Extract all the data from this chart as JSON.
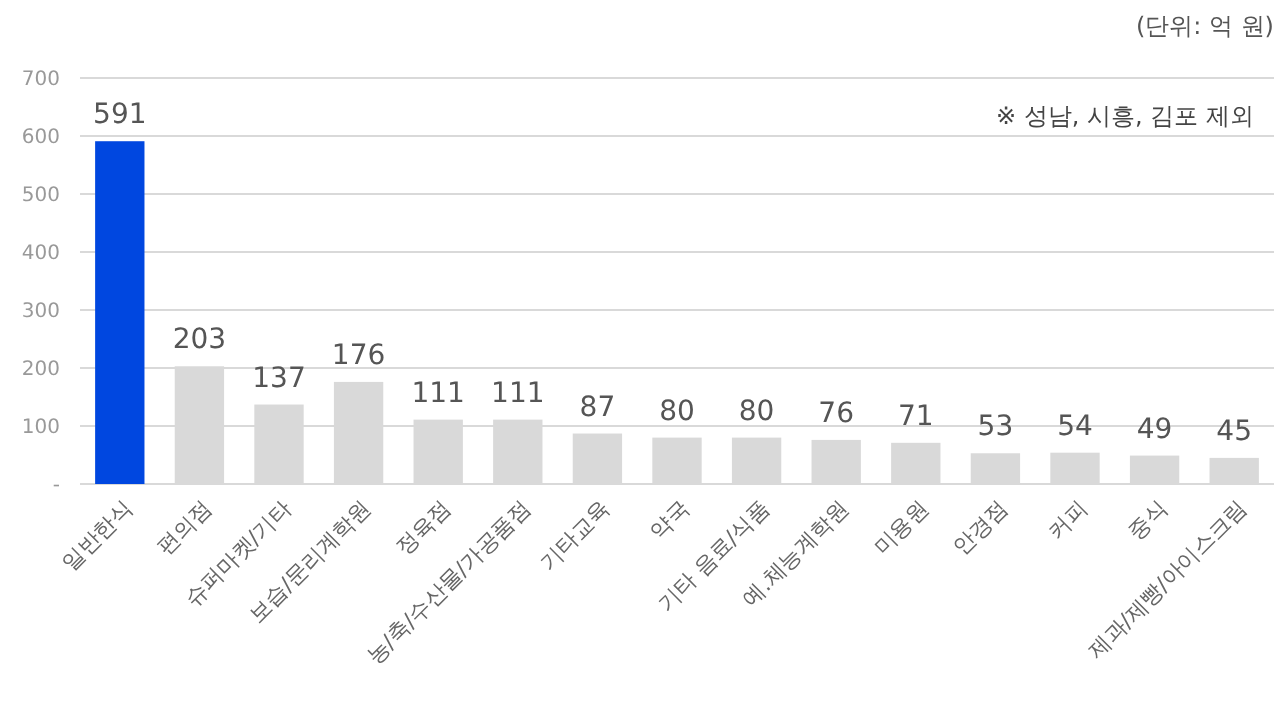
{
  "chart_data": {
    "type": "bar",
    "categories": [
      "일반한식",
      "편의점",
      "슈퍼마켓/기타",
      "보습/문리계학원",
      "정육점",
      "농/축/수산물/가공품점",
      "기타교육",
      "약국",
      "기타 음료/식품",
      "예.체능계학원",
      "미용원",
      "안경점",
      "커피",
      "중식",
      "제과/제빵/아이스크림"
    ],
    "values": [
      591,
      203,
      137,
      176,
      111,
      111,
      87,
      80,
      80,
      76,
      71,
      53,
      54,
      49,
      45
    ],
    "colors": [
      "#0047e0",
      "#d9d9d9",
      "#d9d9d9",
      "#d9d9d9",
      "#d9d9d9",
      "#d9d9d9",
      "#d9d9d9",
      "#d9d9d9",
      "#d9d9d9",
      "#d9d9d9",
      "#d9d9d9",
      "#d9d9d9",
      "#d9d9d9",
      "#d9d9d9",
      "#d9d9d9"
    ],
    "ylim": [
      0,
      700
    ],
    "yticks": [
      {
        "value": 0,
        "label": "-"
      },
      100,
      200,
      300,
      400,
      500,
      600,
      700
    ],
    "grid": "y",
    "data_labels": true,
    "annotations": [
      "(단위: 억 원)",
      "※ 성남, 시흥, 김포 제외"
    ]
  }
}
